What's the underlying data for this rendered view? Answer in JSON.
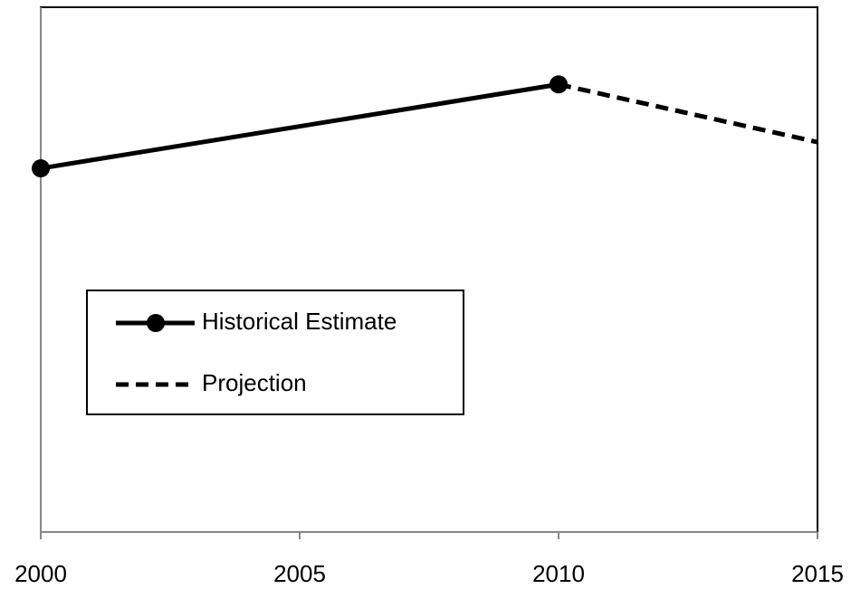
{
  "chart_data": {
    "type": "line",
    "series": [
      {
        "name": "Historical Estimate",
        "color": "#000000",
        "line_style": "solid",
        "marker": true,
        "x": [
          2000,
          2010
        ],
        "values": [
          69.3,
          85.3
        ]
      },
      {
        "name": "Projection",
        "color": "#000000",
        "line_style": "dashed",
        "marker": false,
        "x": [
          2010,
          2015
        ],
        "values": [
          85.3,
          74.3
        ]
      }
    ],
    "xlim": [
      2000,
      2015
    ],
    "xticks": [
      2000,
      2005,
      2010,
      2015
    ],
    "ylim": [
      0,
      100
    ],
    "grid": false,
    "legend": "left"
  }
}
